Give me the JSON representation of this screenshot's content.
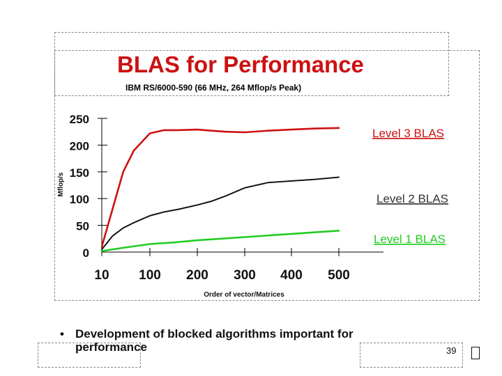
{
  "slide": {
    "title": "BLAS for Performance",
    "bullet": "Development of blocked algorithms important for performance",
    "page_number": "39"
  },
  "chart_data": {
    "type": "line",
    "title": "IBM RS/6000-590 (66 MHz, 264 Mflop/s Peak)",
    "xlabel": "Order of vector/Matrices",
    "ylabel": "Mflop/s",
    "x_ticks": [
      10,
      100,
      200,
      300,
      400,
      500
    ],
    "y_ticks": [
      0,
      50,
      100,
      150,
      200,
      250
    ],
    "ylim": [
      0,
      250
    ],
    "grid": false,
    "series": [
      {
        "name": "Level 3 BLAS",
        "color": "#cc1111",
        "x": [
          10,
          30,
          50,
          70,
          100,
          130,
          160,
          200,
          230,
          260,
          300,
          350,
          400,
          450,
          500
        ],
        "values": [
          10,
          80,
          150,
          190,
          222,
          228,
          228,
          229,
          227,
          225,
          224,
          227,
          229,
          231,
          232
        ]
      },
      {
        "name": "Level 2 BLAS",
        "color": "#111111",
        "x": [
          10,
          30,
          50,
          70,
          100,
          130,
          160,
          200,
          230,
          260,
          300,
          350,
          400,
          450,
          500
        ],
        "values": [
          5,
          30,
          45,
          55,
          68,
          75,
          80,
          88,
          95,
          105,
          120,
          130,
          133,
          136,
          140
        ]
      },
      {
        "name": "Level 1 BLAS",
        "color": "#22cc22",
        "x": [
          10,
          50,
          100,
          150,
          200,
          250,
          300,
          350,
          400,
          450,
          500
        ],
        "values": [
          2,
          8,
          15,
          18,
          22,
          25,
          28,
          31,
          34,
          37,
          40
        ]
      }
    ]
  }
}
